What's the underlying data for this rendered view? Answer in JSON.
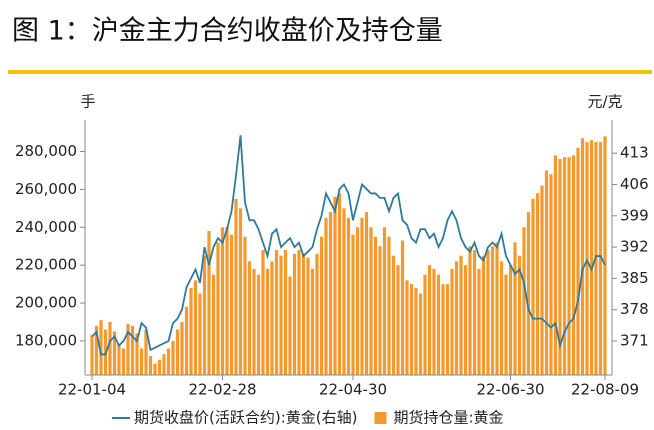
{
  "chart_data": {
    "type": "bar",
    "title": "图 1：沪金主力合约收盘价及持仓量",
    "y_label": "手",
    "y2_label": "元/克",
    "categories": [
      "22-01-04",
      null,
      null,
      null,
      null,
      null,
      null,
      null,
      null,
      null,
      null,
      null,
      null,
      null,
      null,
      null,
      null,
      null,
      null,
      null,
      null,
      null,
      null,
      null,
      null,
      null,
      null,
      null,
      null,
      "22-02-28",
      null,
      null,
      null,
      null,
      null,
      null,
      null,
      null,
      null,
      null,
      null,
      null,
      null,
      null,
      null,
      null,
      null,
      null,
      null,
      null,
      null,
      null,
      null,
      null,
      null,
      null,
      null,
      null,
      "22-04-30",
      null,
      null,
      null,
      null,
      null,
      null,
      null,
      null,
      null,
      null,
      null,
      null,
      null,
      null,
      null,
      null,
      null,
      null,
      null,
      null,
      null,
      null,
      null,
      null,
      null,
      null,
      null,
      null,
      null,
      null,
      null,
      null,
      null,
      null,
      "22-06-30",
      null,
      null,
      null,
      null,
      null,
      null,
      null,
      null,
      null,
      null,
      null,
      null,
      null,
      null,
      null,
      null,
      null,
      null,
      null,
      null,
      "22-08-09"
    ],
    "series": [
      {
        "name": "期货收盘价(活跃合约):黄金(右轴)",
        "type": "line",
        "axis": "y2",
        "color": "#2f7a9a",
        "values": [
          372,
          373,
          368,
          368,
          371,
          372,
          370,
          371,
          373,
          372,
          371,
          375,
          374,
          369,
          369.5,
          370,
          370.5,
          371,
          375,
          376,
          378,
          383,
          385,
          387,
          384,
          392,
          388,
          392,
          394,
          393,
          396,
          400,
          408,
          417,
          402,
          398,
          398,
          396,
          393,
          390,
          395,
          396,
          392,
          393,
          394,
          392,
          393,
          390,
          391,
          392,
          396,
          399,
          404,
          402,
          400,
          405,
          406,
          404,
          398,
          402,
          406,
          405,
          404,
          404,
          403,
          403,
          400,
          403,
          404,
          398,
          397,
          394,
          393,
          396,
          396,
          394,
          395,
          392,
          394,
          398,
          400,
          398,
          394,
          392,
          391,
          393,
          390,
          389,
          392,
          393,
          392,
          395,
          390,
          388,
          386,
          387,
          384,
          378,
          376,
          376,
          376,
          375,
          374,
          375,
          370,
          373,
          375,
          376,
          380,
          387,
          389,
          387,
          390,
          390,
          388
        ]
      },
      {
        "name": "期货持仓量:黄金",
        "type": "bar",
        "color": "#f39a2e",
        "values": [
          183000,
          188000,
          191000,
          186000,
          190000,
          185000,
          178000,
          176000,
          189000,
          188000,
          184000,
          176000,
          186000,
          172000,
          168000,
          170000,
          173000,
          176000,
          180000,
          186000,
          190000,
          198000,
          208000,
          212000,
          205000,
          225000,
          238000,
          215000,
          232000,
          240000,
          240000,
          236000,
          255000,
          250000,
          235000,
          222000,
          218000,
          215000,
          228000,
          218000,
          222000,
          228000,
          225000,
          228000,
          214000,
          226000,
          228000,
          226000,
          224000,
          218000,
          226000,
          235000,
          245000,
          248000,
          256000,
          258000,
          250000,
          245000,
          236000,
          240000,
          245000,
          248000,
          240000,
          235000,
          230000,
          240000,
          235000,
          225000,
          220000,
          233000,
          212000,
          210000,
          208000,
          205000,
          215000,
          220000,
          218000,
          215000,
          210000,
          210000,
          218000,
          222000,
          225000,
          220000,
          230000,
          228000,
          218000,
          225000,
          228000,
          230000,
          232000,
          222000,
          215000,
          220000,
          232000,
          225000,
          240000,
          248000,
          255000,
          258000,
          262000,
          270000,
          268000,
          278000,
          276000,
          277000,
          277000,
          278000,
          282000,
          287000,
          285000,
          286000,
          285000,
          285000,
          288000
        ]
      }
    ],
    "ylim": [
      162000,
      294000
    ],
    "yticks": [
      {
        "value": 180000,
        "label": "180,000"
      },
      {
        "value": 200000,
        "label": "200,000"
      },
      {
        "value": 220000,
        "label": "220,000"
      },
      {
        "value": 240000,
        "label": "240,000"
      },
      {
        "value": 260000,
        "label": "260,000"
      },
      {
        "value": 280000,
        "label": "280,000"
      }
    ],
    "y2lim": [
      363.4,
      419.3
    ],
    "y2ticks": [
      371,
      378,
      385,
      392,
      399,
      406,
      413
    ],
    "grid": false
  }
}
